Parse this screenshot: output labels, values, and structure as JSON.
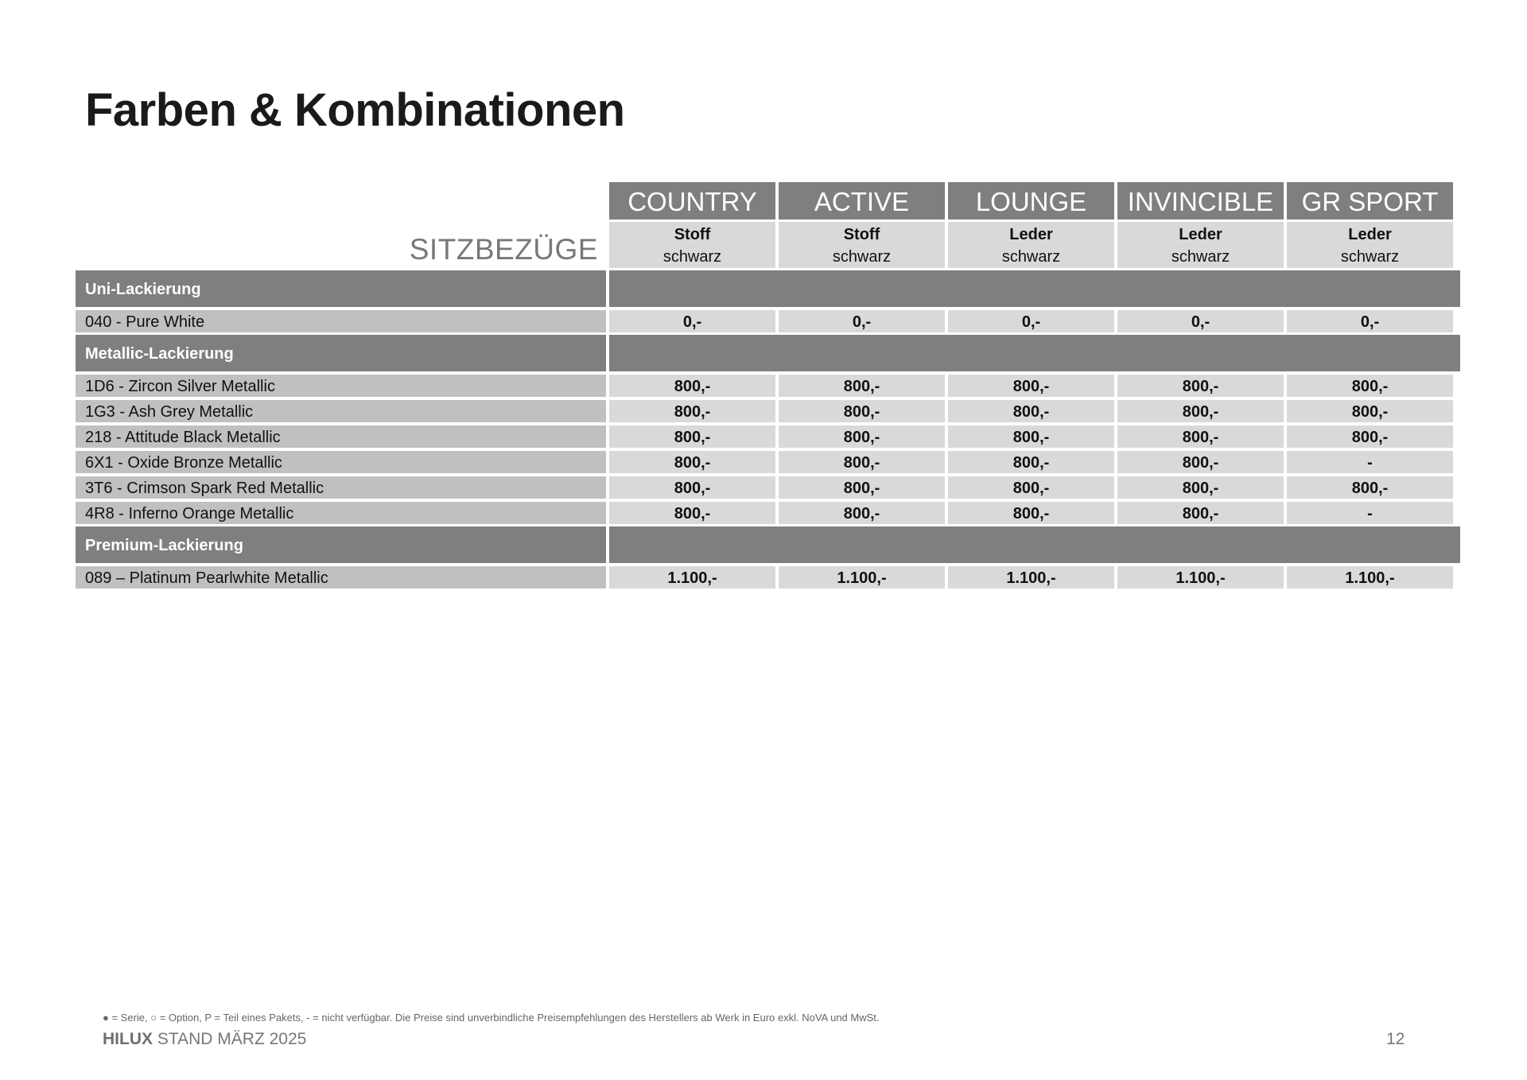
{
  "page": {
    "title": "Farben & Kombinationen"
  },
  "table": {
    "row_header_label": "SITZBEZÜGE",
    "columns": [
      {
        "name": "COUNTRY",
        "material": "Stoff",
        "color": "schwarz"
      },
      {
        "name": "ACTIVE",
        "material": "Stoff",
        "color": "schwarz"
      },
      {
        "name": "LOUNGE",
        "material": "Leder",
        "color": "schwarz"
      },
      {
        "name": "INVINCIBLE",
        "material": "Leder",
        "color": "schwarz"
      },
      {
        "name": "GR SPORT",
        "material": "Leder",
        "color": "schwarz"
      }
    ],
    "sections": [
      {
        "label": "Uni-Lackierung",
        "rows": [
          {
            "label": "040 - Pure White",
            "values": [
              "0,-",
              "0,-",
              "0,-",
              "0,-",
              "0,-"
            ]
          }
        ]
      },
      {
        "label": "Metallic-Lackierung",
        "rows": [
          {
            "label": "1D6 - Zircon Silver Metallic",
            "values": [
              "800,-",
              "800,-",
              "800,-",
              "800,-",
              "800,-"
            ]
          },
          {
            "label": "1G3 - Ash Grey Metallic",
            "values": [
              "800,-",
              "800,-",
              "800,-",
              "800,-",
              "800,-"
            ]
          },
          {
            "label": "218 - Attitude Black Metallic",
            "values": [
              "800,-",
              "800,-",
              "800,-",
              "800,-",
              "800,-"
            ]
          },
          {
            "label": "6X1 - Oxide Bronze Metallic",
            "values": [
              "800,-",
              "800,-",
              "800,-",
              "800,-",
              "-"
            ]
          },
          {
            "label": "3T6 - Crimson Spark Red Metallic",
            "values": [
              "800,-",
              "800,-",
              "800,-",
              "800,-",
              "800,-"
            ]
          },
          {
            "label": "4R8 - Inferno Orange Metallic",
            "values": [
              "800,-",
              "800,-",
              "800,-",
              "800,-",
              "-"
            ]
          }
        ]
      },
      {
        "label": "Premium-Lackierung",
        "rows": [
          {
            "label": "089 – Platinum Pearlwhite Metallic",
            "values": [
              "1.100,-",
              "1.100,-",
              "1.100,-",
              "1.100,-",
              "1.100,-"
            ]
          }
        ]
      }
    ]
  },
  "footer": {
    "legend": "● = Serie, ○ = Option, P = Teil eines Pakets, - = nicht verfügbar. Die Preise sind unverbindliche Preisempfehlungen des Herstellers ab Werk in Euro exkl. NoVA und MwSt.",
    "model": "HILUX",
    "stand": "STAND MÄRZ 2025",
    "page_number": "12"
  },
  "colors": {
    "header_dark": "#7f7f7f",
    "label_cell": "#c0c0c0",
    "value_cell": "#d9d9d9"
  }
}
